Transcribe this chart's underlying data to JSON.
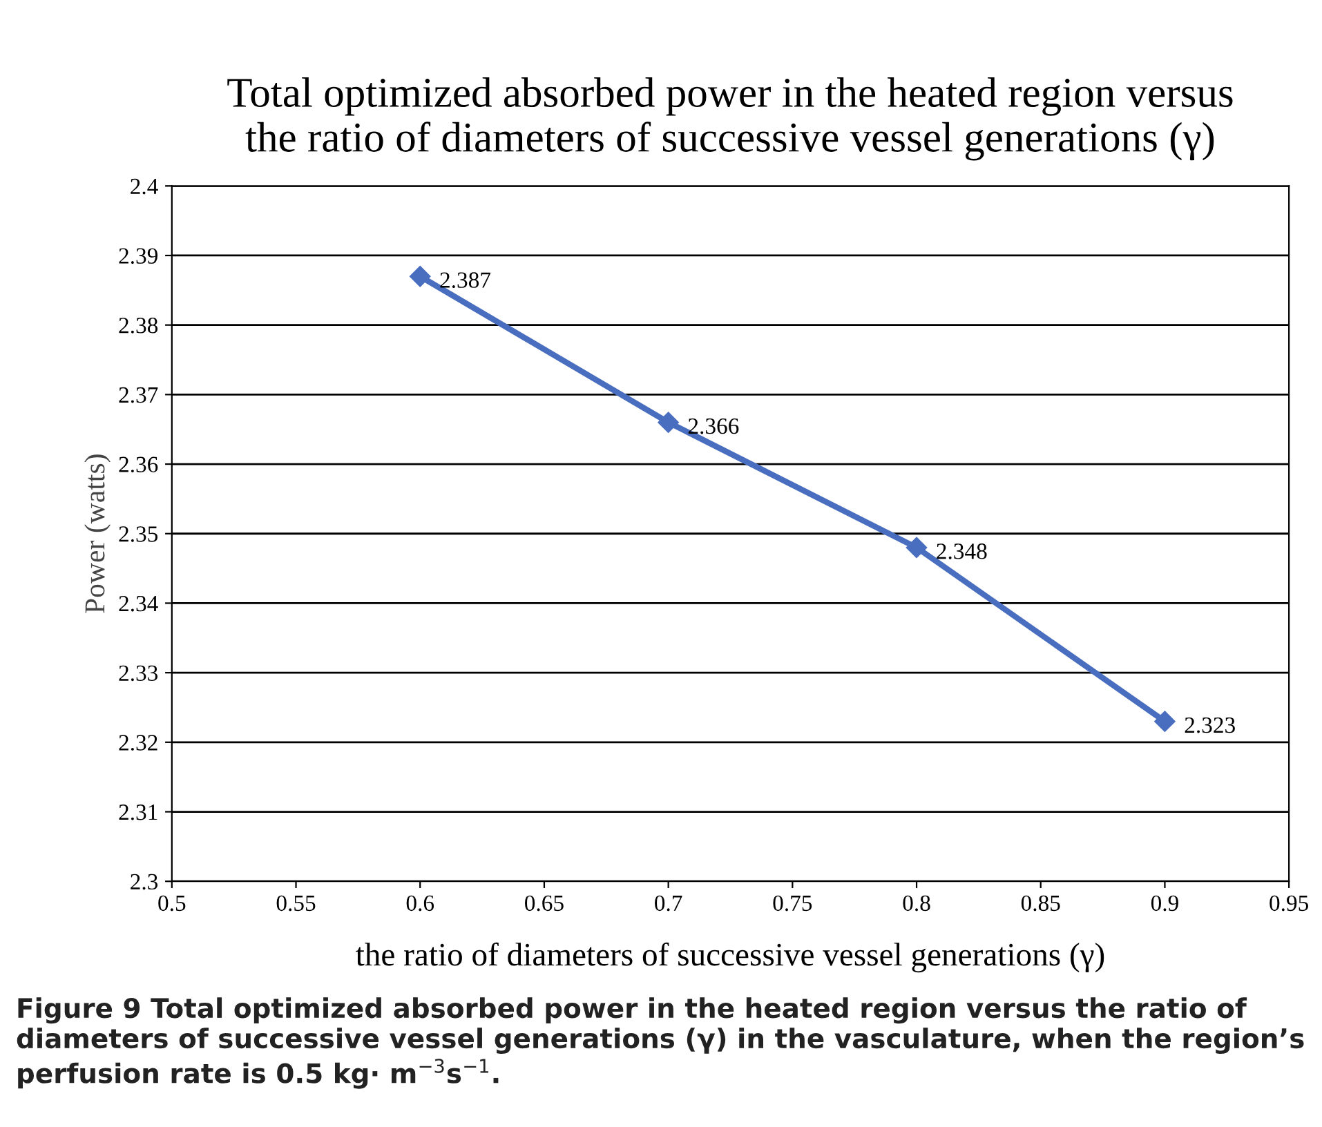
{
  "chart_data": {
    "type": "line",
    "title": "Total optimized absorbed power in the heated region versus\nthe ratio of diameters of successive vessel generations (γ)",
    "xlabel": "the ratio of diameters of successive vessel generations (γ)",
    "ylabel": "Power (watts)",
    "x": [
      0.6,
      0.7,
      0.8,
      0.9
    ],
    "series": [
      {
        "color": "#4a6ebf",
        "values": [
          2.387,
          2.366,
          2.348,
          2.323
        ]
      }
    ],
    "data_labels": true,
    "marker": "diamond",
    "line_style": "solid",
    "grid": "y",
    "legend": false,
    "xlim": [
      0.5,
      0.95
    ],
    "xticks": [
      0.5,
      0.55,
      0.6,
      0.65,
      0.7,
      0.75,
      0.8,
      0.85,
      0.9,
      0.95
    ],
    "ylim": [
      2.3,
      2.4
    ],
    "yticks": [
      2.3,
      2.31,
      2.32,
      2.33,
      2.34,
      2.35,
      2.36,
      2.37,
      2.38,
      2.39,
      2.4
    ],
    "annotations": [
      "Figure 9 Total optimized absorbed power in the heated region versus the ratio of diameters of successive vessel generations (γ) in the vasculature, when the region’s perfusion rate is 0.5 kg· m$^{−3}$s$^{−1}$."
    ]
  }
}
